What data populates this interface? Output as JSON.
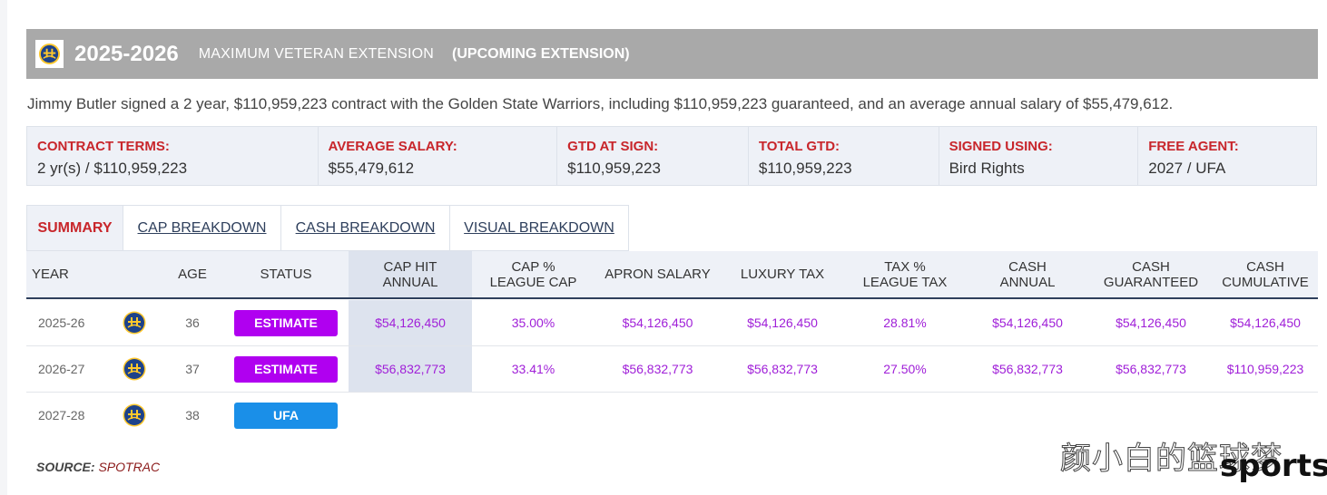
{
  "header": {
    "season": "2025-2026",
    "extension_type": "MAXIMUM VETERAN EXTENSION",
    "extension_status": "(UPCOMING EXTENSION)"
  },
  "summary": "Jimmy Butler signed a 2 year, $110,959,223 contract with the Golden State Warriors, including $110,959,223 guaranteed, and an average annual salary of $55,479,612.",
  "terms": [
    {
      "label": "CONTRACT TERMS:",
      "value": "2 yr(s) / $110,959,223"
    },
    {
      "label": "AVERAGE SALARY:",
      "value": "$55,479,612"
    },
    {
      "label": "GTD AT SIGN:",
      "value": "$110,959,223"
    },
    {
      "label": "TOTAL GTD:",
      "value": "$110,959,223"
    },
    {
      "label": "SIGNED USING:",
      "value": "Bird Rights"
    },
    {
      "label": "FREE AGENT:",
      "value": "2027 / UFA"
    }
  ],
  "tabs": [
    "SUMMARY",
    "CAP BREAKDOWN",
    "CASH BREAKDOWN",
    "VISUAL BREAKDOWN"
  ],
  "active_tab": "SUMMARY",
  "columns": {
    "year": "YEAR",
    "age": "AGE",
    "status": "STATUS",
    "cap_hit": [
      "CAP HIT",
      "ANNUAL"
    ],
    "cap_pct": [
      "CAP %",
      "LEAGUE CAP"
    ],
    "apron": "APRON SALARY",
    "luxury": "LUXURY TAX",
    "tax_pct": [
      "TAX %",
      "LEAGUE TAX"
    ],
    "cash_annual": [
      "CASH",
      "ANNUAL"
    ],
    "cash_gtd": [
      "CASH",
      "GUARANTEED"
    ],
    "cash_cum": [
      "CASH",
      "CUMULATIVE"
    ]
  },
  "rows": [
    {
      "year": "2025-26",
      "age": "36",
      "status": "ESTIMATE",
      "cap_hit": "$54,126,450",
      "cap_pct": "35.00%",
      "apron": "$54,126,450",
      "luxury": "$54,126,450",
      "tax_pct": "28.81%",
      "cash_annual": "$54,126,450",
      "cash_gtd": "$54,126,450",
      "cash_cum": "$54,126,450"
    },
    {
      "year": "2026-27",
      "age": "37",
      "status": "ESTIMATE",
      "cap_hit": "$56,832,773",
      "cap_pct": "33.41%",
      "apron": "$56,832,773",
      "luxury": "$56,832,773",
      "tax_pct": "27.50%",
      "cash_annual": "$56,832,773",
      "cash_gtd": "$56,832,773",
      "cash_cum": "$110,959,223"
    },
    {
      "year": "2027-28",
      "age": "38",
      "status": "UFA"
    }
  ],
  "source": {
    "label": "SOURCE:",
    "name": "SPOTRAC"
  },
  "watermark": {
    "text": "颜小白的篮球梦",
    "brand": "sports"
  },
  "colors": {
    "header_bg": "#a9a9a9",
    "label_red": "#c8262b",
    "money_purple": "#a020d8",
    "estimate_badge": "#b000f0",
    "ufa_badge": "#1a8fe8",
    "team_blue": "#1d428a",
    "team_gold": "#ffc72c"
  },
  "icons": {
    "team_logo": "golden-state-warriors-logo"
  }
}
